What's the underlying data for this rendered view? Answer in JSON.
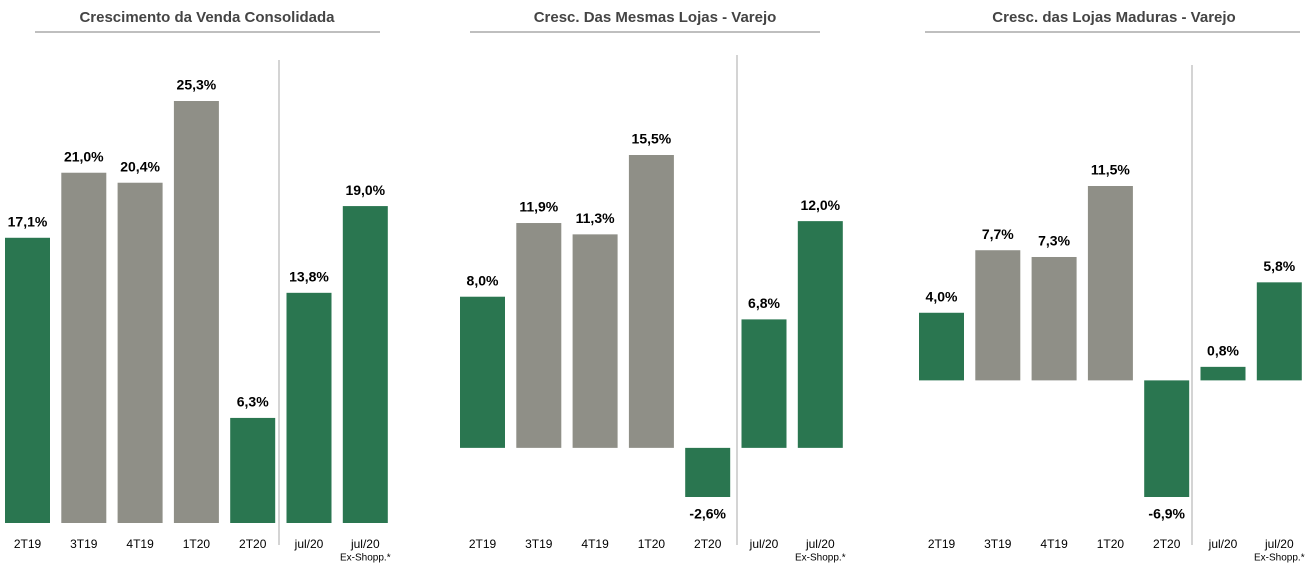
{
  "chart_data": [
    {
      "type": "bar",
      "title": "Crescimento da Venda Consolidada",
      "categories": [
        "2T19",
        "3T19",
        "4T19",
        "1T20",
        "2T20",
        "jul/20",
        "jul/20"
      ],
      "sublabels": [
        null,
        null,
        null,
        null,
        null,
        null,
        "Ex-Shopp.*"
      ],
      "values": [
        17.1,
        21.0,
        20.4,
        25.3,
        6.3,
        13.8,
        19.0
      ],
      "value_labels": [
        "17,1%",
        "21,0%",
        "20,4%",
        "25,3%",
        "6,3%",
        "13,8%",
        "19,0%"
      ],
      "colors": [
        "#2a7650",
        "#8f8f87",
        "#8f8f87",
        "#8f8f87",
        "#2a7650",
        "#2a7650",
        "#2a7650"
      ]
    },
    {
      "type": "bar",
      "title": "Cresc. Das Mesmas Lojas - Varejo",
      "categories": [
        "2T19",
        "3T19",
        "4T19",
        "1T20",
        "2T20",
        "jul/20",
        "jul/20"
      ],
      "sublabels": [
        null,
        null,
        null,
        null,
        null,
        null,
        "Ex-Shopp.*"
      ],
      "values": [
        8.0,
        11.9,
        11.3,
        15.5,
        -2.6,
        6.8,
        12.0
      ],
      "value_labels": [
        "8,0%",
        "11,9%",
        "11,3%",
        "15,5%",
        "-2,6%",
        "6,8%",
        "12,0%"
      ],
      "colors": [
        "#2a7650",
        "#8f8f87",
        "#8f8f87",
        "#8f8f87",
        "#2a7650",
        "#2a7650",
        "#2a7650"
      ]
    },
    {
      "type": "bar",
      "title": "Cresc. das Lojas Maduras - Varejo",
      "categories": [
        "2T19",
        "3T19",
        "4T19",
        "1T20",
        "2T20",
        "jul/20",
        "jul/20"
      ],
      "sublabels": [
        null,
        null,
        null,
        null,
        null,
        null,
        "Ex-Shopp.*"
      ],
      "values": [
        4.0,
        7.7,
        7.3,
        11.5,
        -6.9,
        0.8,
        5.8
      ],
      "value_labels": [
        "4,0%",
        "7,7%",
        "7,3%",
        "11,5%",
        "-6,9%",
        "0,8%",
        "5,8%"
      ],
      "colors": [
        "#2a7650",
        "#8f8f87",
        "#8f8f87",
        "#8f8f87",
        "#2a7650",
        "#2a7650",
        "#2a7650"
      ]
    }
  ]
}
